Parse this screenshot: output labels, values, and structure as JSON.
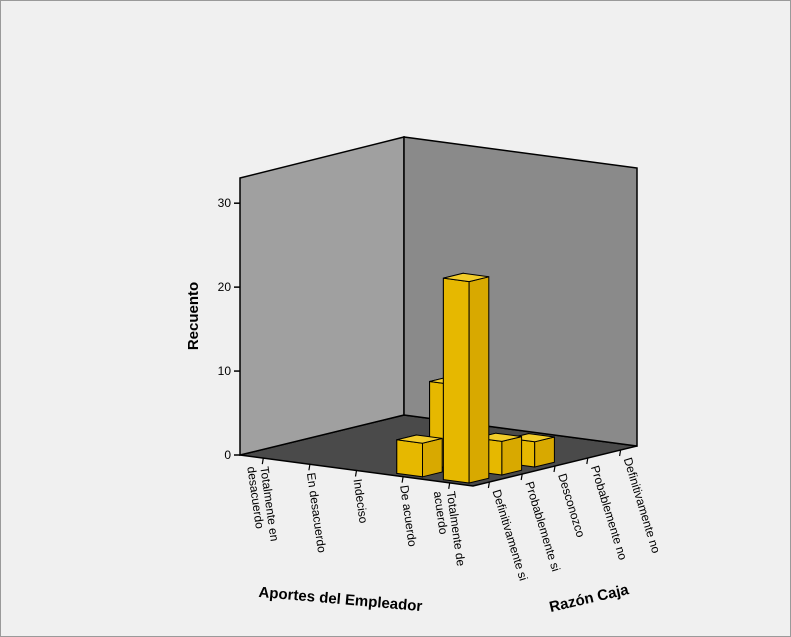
{
  "chart_data": {
    "type": "bar",
    "subtype": "3d-bar",
    "title": "",
    "ylabel": "Recuento",
    "xlabel": "Aportes del Empleador",
    "zlabel": "Razón Caja",
    "ylim": [
      0,
      33
    ],
    "yticks": [
      0,
      10,
      20,
      30
    ],
    "x_categories": [
      "Totalmente en desacuerdo",
      "En desacuerdo",
      "Indeciso",
      "De acuerdo",
      "Totalmente de acuerdo"
    ],
    "z_categories": [
      "Definitivamente si",
      "Probablemente si",
      "Desconozco",
      "Probablemente no",
      "Definitivamente no"
    ],
    "bar_color": "#e6b800",
    "points": [
      {
        "x": "De acuerdo",
        "z": "Definitivamente si",
        "value": 4
      },
      {
        "x": "De acuerdo",
        "z": "Probablemente si",
        "value": 10
      },
      {
        "x": "Totalmente de acuerdo",
        "z": "Definitivamente si",
        "value": 24
      },
      {
        "x": "Totalmente de acuerdo",
        "z": "Probablemente si",
        "value": 4
      },
      {
        "x": "Totalmente de acuerdo",
        "z": "Desconozco",
        "value": 3
      }
    ],
    "grid": false,
    "legend": "none"
  }
}
